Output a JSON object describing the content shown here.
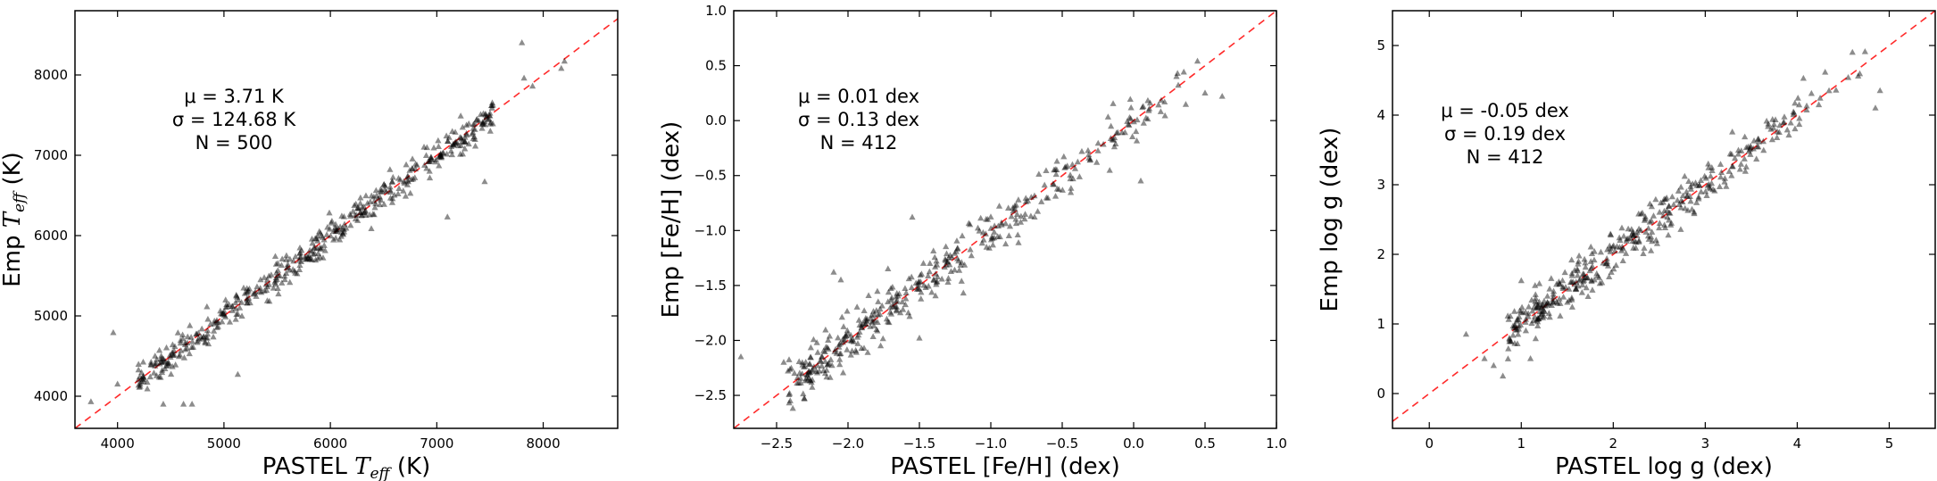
{
  "chart_data": [
    {
      "type": "scatter",
      "panel": "teff",
      "xlabel": "PASTEL T_eff (K)",
      "ylabel": "Emp T_eff (K)",
      "xlabel_parts": {
        "prefix": "PASTEL ",
        "sym": "T",
        "sub": "eff",
        "suffix": " (K)"
      },
      "ylabel_parts": {
        "prefix": "Emp ",
        "sym": "T",
        "sub": "eff",
        "suffix": " (K)"
      },
      "xlim": [
        3600,
        8700
      ],
      "ylim": [
        3600,
        8800
      ],
      "xticks": [
        4000,
        5000,
        6000,
        7000,
        8000
      ],
      "yticks": [
        4000,
        5000,
        6000,
        7000,
        8000
      ],
      "xtick_labels": [
        "4000",
        "5000",
        "6000",
        "7000",
        "8000"
      ],
      "ytick_labels": [
        "4000",
        "5000",
        "6000",
        "7000",
        "8000"
      ],
      "reference_line": "y = x",
      "stats": {
        "mu": "μ = 3.71 K",
        "sigma": "σ = 124.68 K",
        "n": "N = 500"
      },
      "scatter_model": {
        "n_points": 500,
        "x_range": [
          3750,
          8200
        ],
        "scatter": 124.68,
        "seed": 11
      },
      "points": [
        [
          3750,
          3930
        ],
        [
          3960,
          4790
        ],
        [
          4000,
          4150
        ],
        [
          4280,
          4090
        ],
        [
          4430,
          3900
        ],
        [
          4620,
          3900
        ],
        [
          4700,
          3900
        ],
        [
          5130,
          4270
        ],
        [
          6330,
          6310
        ],
        [
          6560,
          6820
        ],
        [
          6880,
          7100
        ],
        [
          7100,
          6230
        ],
        [
          7450,
          6670
        ],
        [
          7800,
          8400
        ],
        [
          7820,
          7960
        ],
        [
          7900,
          7860
        ],
        [
          8170,
          8080
        ],
        [
          8200,
          8170
        ]
      ]
    },
    {
      "type": "scatter",
      "panel": "feh",
      "xlabel": "PASTEL [Fe/H] (dex)",
      "ylabel": "Emp [Fe/H] (dex)",
      "xlim": [
        -2.8,
        1.0
      ],
      "ylim": [
        -2.8,
        1.0
      ],
      "xticks": [
        -2.5,
        -2.0,
        -1.5,
        -1.0,
        -0.5,
        0.0,
        0.5,
        1.0
      ],
      "yticks": [
        -2.5,
        -2.0,
        -1.5,
        -1.0,
        -0.5,
        0.0,
        0.5,
        1.0
      ],
      "xtick_labels": [
        "−2.5",
        "−2.0",
        "−1.5",
        "−1.0",
        "−0.5",
        "0.0",
        "0.5",
        "1.0"
      ],
      "ytick_labels": [
        "−2.5",
        "−2.0",
        "−1.5",
        "−1.0",
        "−0.5",
        "0.0",
        "0.5",
        "1.0"
      ],
      "reference_line": "y = x",
      "stats": {
        "mu": "μ = 0.01 dex",
        "sigma": "σ = 0.13 dex",
        "n": "N = 412"
      },
      "scatter_model": {
        "n_points": 412,
        "x_range": [
          -2.75,
          0.6
        ],
        "scatter": 0.13,
        "seed": 23
      },
      "points": [
        [
          -2.75,
          -2.15
        ],
        [
          -2.45,
          -2.2
        ],
        [
          -2.42,
          -2.28
        ],
        [
          -2.1,
          -1.38
        ],
        [
          -2.05,
          -1.45
        ],
        [
          -1.98,
          -2.0
        ],
        [
          -1.72,
          -1.35
        ],
        [
          -1.55,
          -0.88
        ],
        [
          -1.5,
          -1.98
        ],
        [
          -1.2,
          -1.05
        ],
        [
          0.05,
          -0.55
        ],
        [
          0.3,
          0.4
        ],
        [
          0.5,
          0.25
        ],
        [
          0.62,
          0.22
        ]
      ]
    },
    {
      "type": "scatter",
      "panel": "logg",
      "xlabel": "PASTEL log g (dex)",
      "ylabel": "Emp log g (dex)",
      "xlim": [
        -0.4,
        5.5
      ],
      "ylim": [
        -0.5,
        5.5
      ],
      "xticks": [
        0,
        1,
        2,
        3,
        4,
        5
      ],
      "yticks": [
        0,
        1,
        2,
        3,
        4,
        5
      ],
      "xtick_labels": [
        "0",
        "1",
        "2",
        "3",
        "4",
        "5"
      ],
      "ytick_labels": [
        "0",
        "1",
        "2",
        "3",
        "4",
        "5"
      ],
      "reference_line": "y = x",
      "stats": {
        "mu": "μ = -0.05 dex",
        "sigma": "σ = 0.19 dex",
        "n": "N = 412"
      },
      "scatter_model": {
        "n_points": 412,
        "x_range": [
          0.4,
          4.9
        ],
        "scatter": 0.19,
        "seed": 37
      },
      "points": [
        [
          0.4,
          0.85
        ],
        [
          0.6,
          0.5
        ],
        [
          0.7,
          0.4
        ],
        [
          0.8,
          0.25
        ],
        [
          1.0,
          1.62
        ],
        [
          1.05,
          0.9
        ],
        [
          1.1,
          0.5
        ],
        [
          1.15,
          1.55
        ],
        [
          4.6,
          4.9
        ],
        [
          4.9,
          4.35
        ],
        [
          4.85,
          4.1
        ]
      ]
    }
  ]
}
